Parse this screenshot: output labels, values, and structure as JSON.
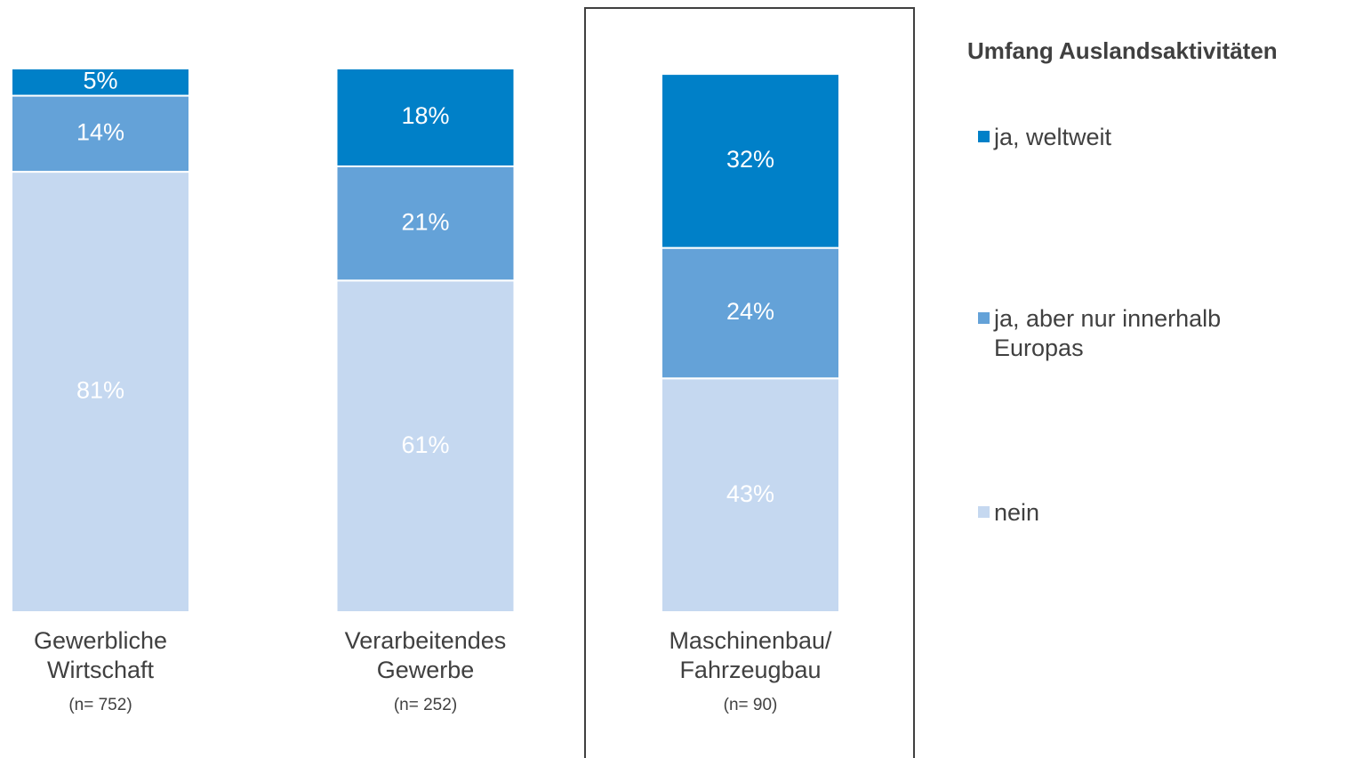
{
  "chart_data": {
    "type": "stacked_bar",
    "categories": [
      "Gewerbliche Wirtschaft",
      "Verarbeitendes Gewerbe",
      "Maschinenbau/ Fahrzeugbau"
    ],
    "category_notes": [
      "(n= 752)",
      "(n= 252)",
      "(n= 90)"
    ],
    "legend_title": "Umfang Auslandsaktivitäten",
    "series": [
      {
        "name": "nein",
        "color": "#c5d8f0",
        "label_color": "#ffffff",
        "values": [
          81,
          61,
          43
        ],
        "value_labels": [
          "81%",
          "61%",
          "43%"
        ]
      },
      {
        "name": "ja, aber nur innerhalb Europas",
        "color": "#64a2d8",
        "label_color": "#ffffff",
        "values": [
          14,
          21,
          24
        ],
        "value_labels": [
          "14%",
          "21%",
          "24%"
        ]
      },
      {
        "name": "ja, weltweit",
        "color": "#0080c8",
        "label_color": "#ffffff",
        "values": [
          5,
          18,
          32
        ],
        "value_labels": [
          "5%",
          "18%",
          "32%"
        ]
      }
    ],
    "ylim": [
      0,
      100
    ],
    "highlight": 2
  }
}
